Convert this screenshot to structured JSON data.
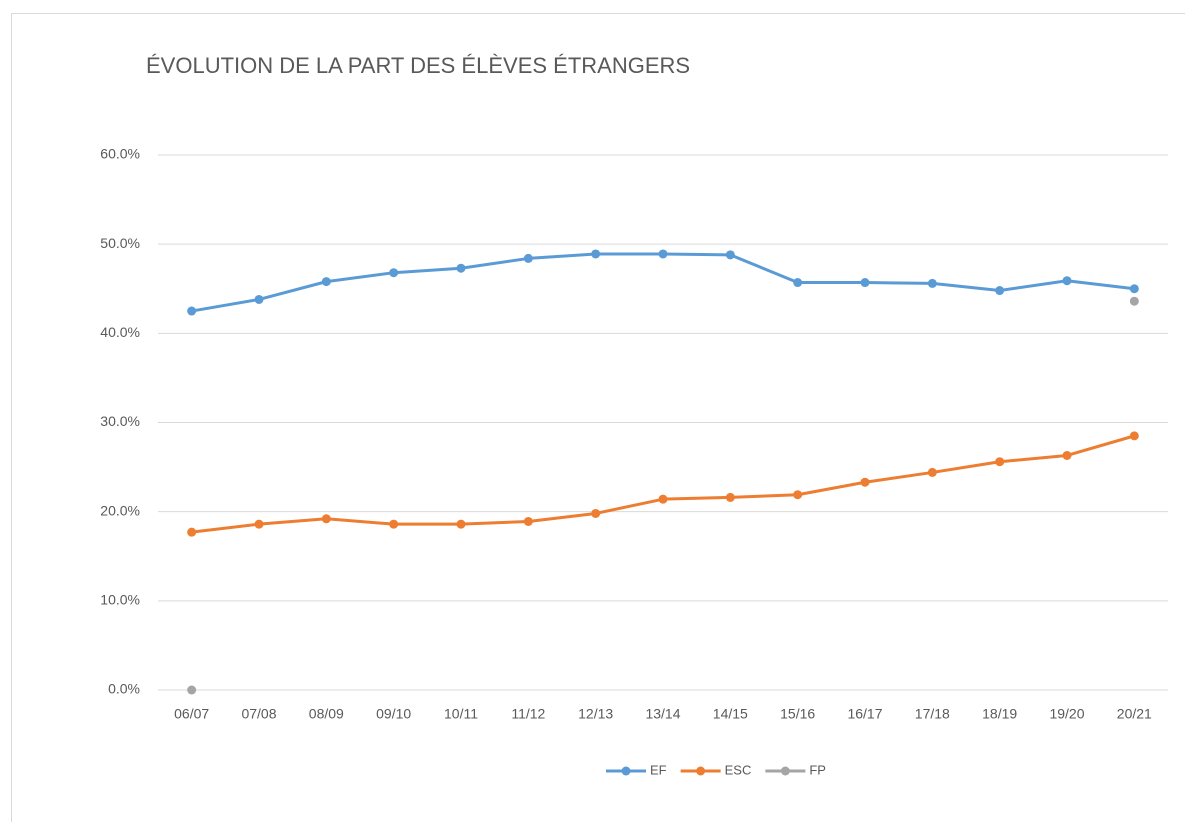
{
  "chart_data": {
    "type": "line",
    "title": "ÉVOLUTION DE LA PART DES ÉLÈVES ÉTRANGERS",
    "categories": [
      "06/07",
      "07/08",
      "08/09",
      "09/10",
      "10/11",
      "11/12",
      "12/13",
      "13/14",
      "14/15",
      "15/16",
      "16/17",
      "17/18",
      "18/19",
      "19/20",
      "20/21"
    ],
    "series": [
      {
        "name": "EF",
        "color": "#5b9bd5",
        "values": [
          42.5,
          43.8,
          45.8,
          46.8,
          47.3,
          48.4,
          48.9,
          48.9,
          48.8,
          45.7,
          45.7,
          45.6,
          44.8,
          45.9,
          45.0
        ]
      },
      {
        "name": "ESC",
        "color": "#ed7d31",
        "values": [
          17.7,
          18.6,
          19.2,
          18.6,
          18.6,
          18.9,
          19.8,
          21.4,
          21.6,
          21.9,
          23.3,
          24.4,
          25.6,
          26.3,
          28.5
        ]
      },
      {
        "name": "FP",
        "color": "#a5a5a5",
        "values": [
          0,
          null,
          null,
          null,
          null,
          null,
          null,
          null,
          null,
          null,
          null,
          null,
          null,
          null,
          43.6
        ]
      }
    ],
    "ylim": [
      0,
      60
    ],
    "yticks": [
      {
        "value": 0,
        "label": "0.0%"
      },
      {
        "value": 10,
        "label": "10.0%"
      },
      {
        "value": 20,
        "label": "20.0%"
      },
      {
        "value": 30,
        "label": "30.0%"
      },
      {
        "value": 40,
        "label": "40.0%"
      },
      {
        "value": 50,
        "label": "50.0%"
      },
      {
        "value": 60,
        "label": "60.0%"
      }
    ],
    "grid": true,
    "legend": "bottom"
  }
}
